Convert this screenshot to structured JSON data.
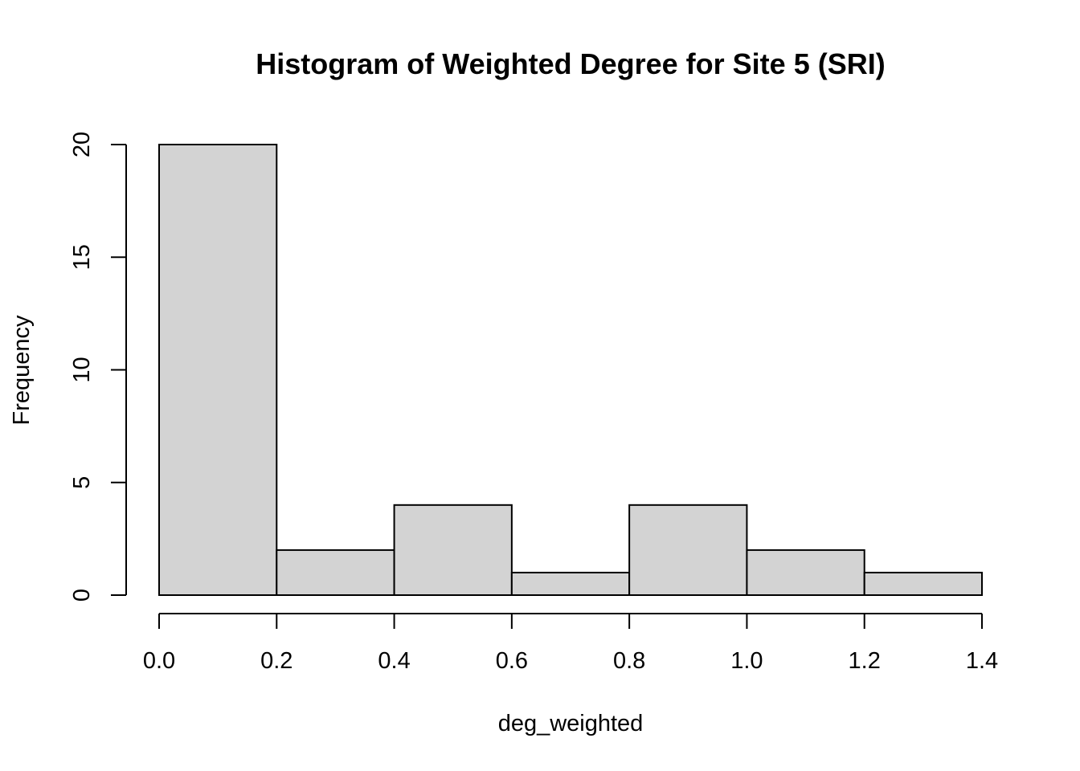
{
  "chart_data": {
    "type": "bar",
    "title": "Histogram of Weighted Degree for Site 5 (SRI)",
    "xlabel": "deg_weighted",
    "ylabel": "Frequency",
    "bins": [
      {
        "start": 0.0,
        "end": 0.2,
        "count": 20
      },
      {
        "start": 0.2,
        "end": 0.4,
        "count": 2
      },
      {
        "start": 0.4,
        "end": 0.6,
        "count": 4
      },
      {
        "start": 0.6,
        "end": 0.8,
        "count": 1
      },
      {
        "start": 0.8,
        "end": 1.0,
        "count": 4
      },
      {
        "start": 1.0,
        "end": 1.2,
        "count": 2
      },
      {
        "start": 1.2,
        "end": 1.4,
        "count": 1
      }
    ],
    "xlim": [
      0.0,
      1.4
    ],
    "ylim": [
      0,
      20
    ],
    "x_ticks": [
      "0.0",
      "0.2",
      "0.4",
      "0.6",
      "0.8",
      "1.0",
      "1.2",
      "1.4"
    ],
    "y_ticks": [
      "0",
      "5",
      "10",
      "15",
      "20"
    ],
    "grid": false,
    "bar_color": "#d3d3d3",
    "edge_color": "#000000"
  }
}
